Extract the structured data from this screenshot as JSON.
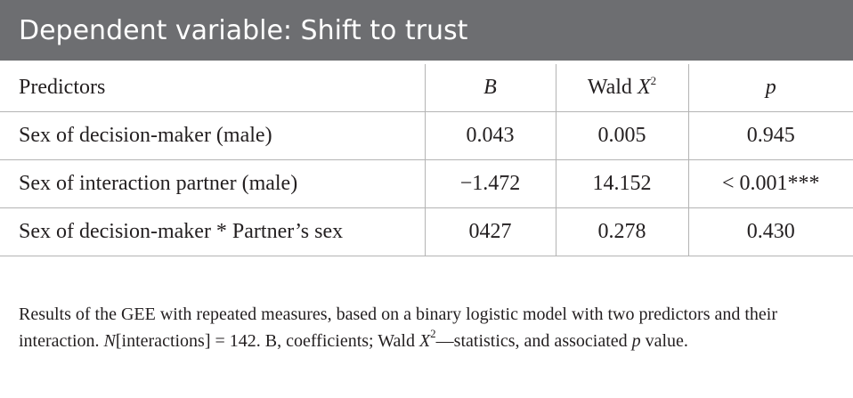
{
  "title": "Dependent variable: Shift to trust",
  "table": {
    "headers": {
      "predictors": "Predictors",
      "b": "B",
      "wald": "Wald X",
      "wald_sup": "2",
      "p": "p"
    },
    "rows": [
      {
        "predictor": "Sex of decision-maker (male)",
        "b": "0.043",
        "wald": "0.005",
        "p": "0.945"
      },
      {
        "predictor": "Sex of interaction partner (male)",
        "b": "−1.472",
        "wald": "14.152",
        "p": "< 0.001***"
      },
      {
        "predictor": "Sex of decision-maker * Partner’s sex",
        "b": "0427",
        "wald": "0.278",
        "p": "0.430"
      }
    ]
  },
  "note": {
    "part1": "Results of the GEE with repeated measures, based on a binary logistic model with two predictors and their interaction. ",
    "n_symbol": "N",
    "part2": "[interactions] = 142. B, coefficients; Wald ",
    "x_symbol": "X",
    "x_sup": "2",
    "part3": "—statistics, and associated ",
    "p_symbol": "p",
    "part4": " value."
  }
}
